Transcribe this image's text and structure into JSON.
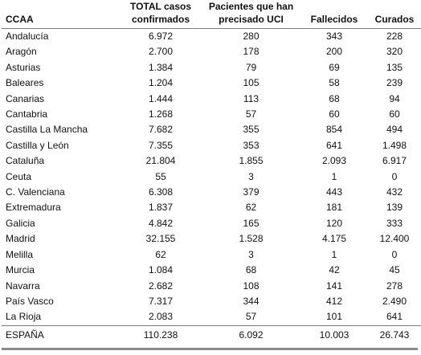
{
  "headers": {
    "ccaa": "CCAA",
    "total_line1": "TOTAL casos",
    "total_line2": "confirmados",
    "uci_line1": "Pacientes que han",
    "uci_line2": "precisado UCI",
    "fallecidos": "Fallecidos",
    "curados": "Curados"
  },
  "rows": [
    {
      "ccaa": "Andalucía",
      "total": "6.972",
      "uci": "280",
      "fallecidos": "343",
      "curados": "228"
    },
    {
      "ccaa": "Aragón",
      "total": "2.700",
      "uci": "178",
      "fallecidos": "200",
      "curados": "320"
    },
    {
      "ccaa": "Asturias",
      "total": "1.384",
      "uci": "79",
      "fallecidos": "69",
      "curados": "135"
    },
    {
      "ccaa": "Baleares",
      "total": "1.204",
      "uci": "105",
      "fallecidos": "58",
      "curados": "239"
    },
    {
      "ccaa": "Canarias",
      "total": "1.444",
      "uci": "113",
      "fallecidos": "68",
      "curados": "94"
    },
    {
      "ccaa": "Cantabria",
      "total": "1.268",
      "uci": "57",
      "fallecidos": "60",
      "curados": "60"
    },
    {
      "ccaa": "Castilla La Mancha",
      "total": "7.682",
      "uci": "355",
      "fallecidos": "854",
      "curados": "494"
    },
    {
      "ccaa": "Castilla y León",
      "total": "7.355",
      "uci": "353",
      "fallecidos": "641",
      "curados": "1.498"
    },
    {
      "ccaa": "Cataluña",
      "total": "21.804",
      "uci": "1.855",
      "fallecidos": "2.093",
      "curados": "6.917"
    },
    {
      "ccaa": "Ceuta",
      "total": "55",
      "uci": "3",
      "fallecidos": "1",
      "curados": "0"
    },
    {
      "ccaa": "C. Valenciana",
      "total": "6.308",
      "uci": "379",
      "fallecidos": "443",
      "curados": "432"
    },
    {
      "ccaa": "Extremadura",
      "total": "1.837",
      "uci": "62",
      "fallecidos": "181",
      "curados": "139"
    },
    {
      "ccaa": "Galicia",
      "total": "4.842",
      "uci": "165",
      "fallecidos": "120",
      "curados": "333"
    },
    {
      "ccaa": "Madrid",
      "total": "32.155",
      "uci": "1.528",
      "fallecidos": "4.175",
      "curados": "12.400"
    },
    {
      "ccaa": "Melilla",
      "total": "62",
      "uci": "3",
      "fallecidos": "1",
      "curados": "0"
    },
    {
      "ccaa": "Murcia",
      "total": "1.084",
      "uci": "68",
      "fallecidos": "42",
      "curados": "45"
    },
    {
      "ccaa": "Navarra",
      "total": "2.682",
      "uci": "108",
      "fallecidos": "141",
      "curados": "278"
    },
    {
      "ccaa": "País Vasco",
      "total": "7.317",
      "uci": "344",
      "fallecidos": "412",
      "curados": "2.490"
    },
    {
      "ccaa": "La Rioja",
      "total": "2.083",
      "uci": "57",
      "fallecidos": "101",
      "curados": "641"
    }
  ],
  "total": {
    "ccaa": "ESPAÑA",
    "total": "110.238",
    "uci": "6.092",
    "fallecidos": "10.003",
    "curados": "26.743"
  }
}
